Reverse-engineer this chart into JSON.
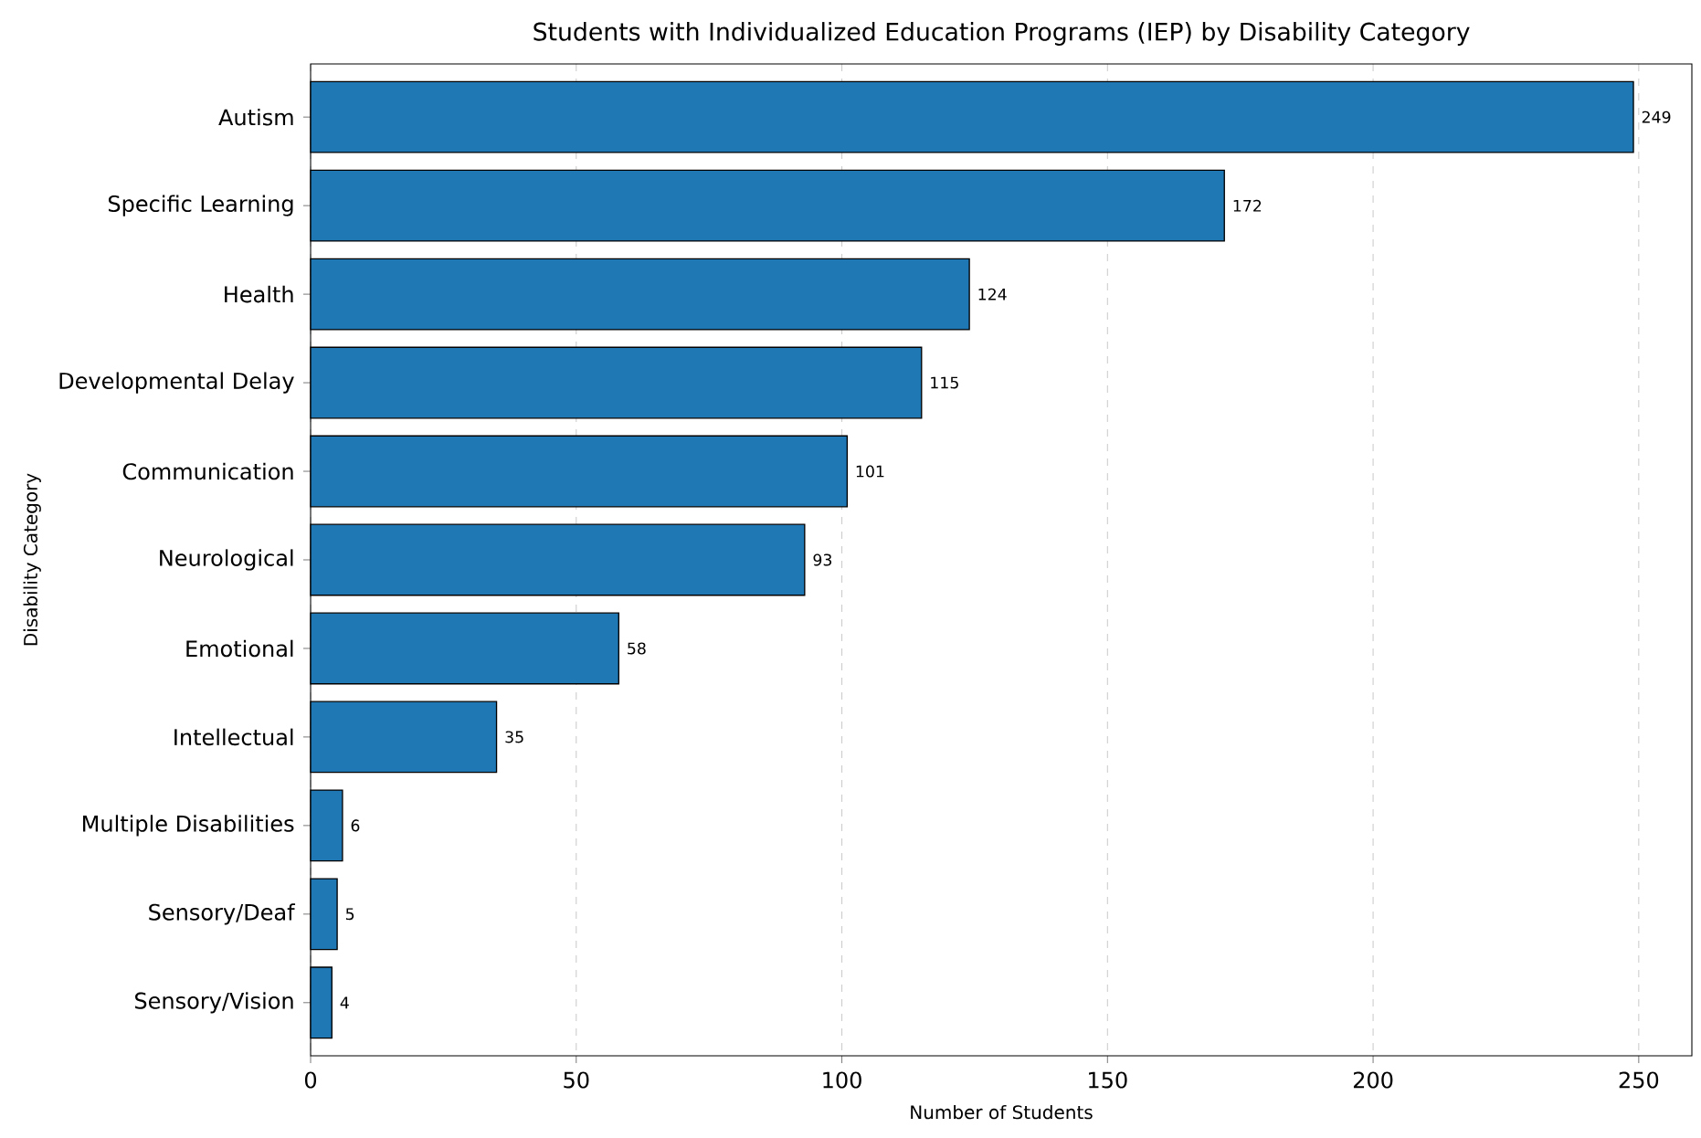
{
  "chart_data": {
    "type": "bar",
    "orientation": "horizontal",
    "title": "Students with Individualized Education Programs (IEP) by Disability Category",
    "xlabel": "Number of Students",
    "ylabel": "Disability Category",
    "categories": [
      "Autism",
      "Specific Learning",
      "Health",
      "Developmental Delay",
      "Communication",
      "Neurological",
      "Emotional",
      "Intellectual",
      "Multiple Disabilities",
      "Sensory/Deaf",
      "Sensory/Vision"
    ],
    "values": [
      249,
      172,
      124,
      115,
      101,
      93,
      58,
      35,
      6,
      5,
      4
    ],
    "color": "#1f77b4",
    "data_labels": true,
    "grid": "x",
    "xlim": [
      0,
      260
    ],
    "xticks": [
      0,
      50,
      100,
      150,
      200,
      250
    ]
  }
}
